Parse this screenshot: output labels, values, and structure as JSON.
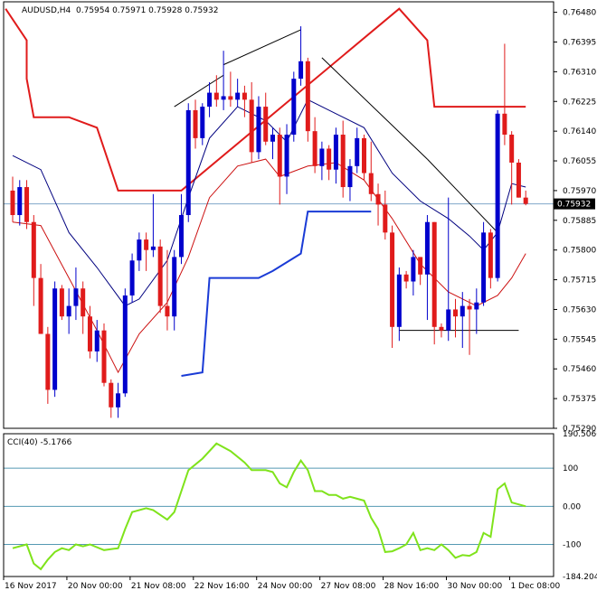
{
  "colors": {
    "background": "#ffffff",
    "axis": "#000000",
    "bull_body": "#0000cc",
    "bear_body": "#e01b1b",
    "ma_fast": "#00007f",
    "ma_slow": "#cc1111",
    "upper_band": "#e01b1b",
    "lower_band": "#1a3bd6",
    "cci_line": "#7fe31b",
    "cci_level": "#2a7fa0",
    "price_line": "#7fa7c9",
    "trendline": "#000000"
  },
  "chart_data": {
    "type": "candlestick",
    "header": {
      "symbol": "AUDUSD,H4",
      "ohlc": "0.75954 0.75971 0.75928 0.75932"
    },
    "current_price_label": "0.75932",
    "current_price": 0.75932,
    "ylim": [
      0.7529,
      0.7651
    ],
    "y_ticks": [
      "0.76480",
      "0.76395",
      "0.76310",
      "0.76225",
      "0.76140",
      "0.76055",
      "0.75970",
      "0.75885",
      "0.75800",
      "0.75715",
      "0.75630",
      "0.75545",
      "0.75460",
      "0.75375",
      "0.75290"
    ],
    "x_labels": [
      "16 Nov 2017",
      "20 Nov 00:00",
      "21 Nov 08:00",
      "22 Nov 16:00",
      "24 Nov 00:00",
      "27 Nov 08:00",
      "28 Nov 16:00",
      "30 Nov 00:00",
      "1 Dec 08:00"
    ],
    "candles": [
      {
        "o": 0.7597,
        "h": 0.7601,
        "l": 0.7588,
        "c": 0.759
      },
      {
        "o": 0.759,
        "h": 0.76,
        "l": 0.7587,
        "c": 0.7598
      },
      {
        "o": 0.7598,
        "h": 0.76,
        "l": 0.7586,
        "c": 0.7588
      },
      {
        "o": 0.7588,
        "h": 0.759,
        "l": 0.7564,
        "c": 0.7572
      },
      {
        "o": 0.7572,
        "h": 0.7576,
        "l": 0.7556,
        "c": 0.7556
      },
      {
        "o": 0.7556,
        "h": 0.7558,
        "l": 0.7536,
        "c": 0.754
      },
      {
        "o": 0.754,
        "h": 0.7571,
        "l": 0.7538,
        "c": 0.7569
      },
      {
        "o": 0.7569,
        "h": 0.757,
        "l": 0.756,
        "c": 0.7561
      },
      {
        "o": 0.7561,
        "h": 0.7569,
        "l": 0.7556,
        "c": 0.7564
      },
      {
        "o": 0.7564,
        "h": 0.7575,
        "l": 0.756,
        "c": 0.7569
      },
      {
        "o": 0.7569,
        "h": 0.7571,
        "l": 0.7556,
        "c": 0.7561
      },
      {
        "o": 0.7561,
        "h": 0.7564,
        "l": 0.7549,
        "c": 0.7551
      },
      {
        "o": 0.7551,
        "h": 0.756,
        "l": 0.7548,
        "c": 0.7557
      },
      {
        "o": 0.7557,
        "h": 0.7559,
        "l": 0.7541,
        "c": 0.7542
      },
      {
        "o": 0.7542,
        "h": 0.7543,
        "l": 0.7532,
        "c": 0.7535
      },
      {
        "o": 0.7535,
        "h": 0.7542,
        "l": 0.7532,
        "c": 0.7539
      },
      {
        "o": 0.7539,
        "h": 0.7569,
        "l": 0.7538,
        "c": 0.7567
      },
      {
        "o": 0.7567,
        "h": 0.7579,
        "l": 0.7565,
        "c": 0.7577
      },
      {
        "o": 0.7577,
        "h": 0.7585,
        "l": 0.7574,
        "c": 0.7583
      },
      {
        "o": 0.7583,
        "h": 0.7585,
        "l": 0.7574,
        "c": 0.758
      },
      {
        "o": 0.758,
        "h": 0.7596,
        "l": 0.7578,
        "c": 0.7581
      },
      {
        "o": 0.7581,
        "h": 0.7583,
        "l": 0.7562,
        "c": 0.7564
      },
      {
        "o": 0.7564,
        "h": 0.758,
        "l": 0.7557,
        "c": 0.7561
      },
      {
        "o": 0.7561,
        "h": 0.758,
        "l": 0.7557,
        "c": 0.7578
      },
      {
        "o": 0.7578,
        "h": 0.7596,
        "l": 0.7576,
        "c": 0.759
      },
      {
        "o": 0.759,
        "h": 0.7622,
        "l": 0.7588,
        "c": 0.762
      },
      {
        "o": 0.762,
        "h": 0.7623,
        "l": 0.7609,
        "c": 0.7612
      },
      {
        "o": 0.7612,
        "h": 0.7622,
        "l": 0.761,
        "c": 0.7621
      },
      {
        "o": 0.7621,
        "h": 0.7628,
        "l": 0.7618,
        "c": 0.7625
      },
      {
        "o": 0.7625,
        "h": 0.763,
        "l": 0.7621,
        "c": 0.7623
      },
      {
        "o": 0.7623,
        "h": 0.7637,
        "l": 0.762,
        "c": 0.7624
      },
      {
        "o": 0.7624,
        "h": 0.7631,
        "l": 0.7621,
        "c": 0.7623
      },
      {
        "o": 0.7623,
        "h": 0.7629,
        "l": 0.7621,
        "c": 0.7625
      },
      {
        "o": 0.7625,
        "h": 0.7627,
        "l": 0.7618,
        "c": 0.7623
      },
      {
        "o": 0.7623,
        "h": 0.7628,
        "l": 0.7605,
        "c": 0.7608
      },
      {
        "o": 0.7608,
        "h": 0.7624,
        "l": 0.7606,
        "c": 0.7621
      },
      {
        "o": 0.7621,
        "h": 0.7625,
        "l": 0.761,
        "c": 0.7611
      },
      {
        "o": 0.7611,
        "h": 0.7615,
        "l": 0.7606,
        "c": 0.7613
      },
      {
        "o": 0.7613,
        "h": 0.7615,
        "l": 0.7593,
        "c": 0.7601
      },
      {
        "o": 0.7601,
        "h": 0.7616,
        "l": 0.7596,
        "c": 0.7613
      },
      {
        "o": 0.7613,
        "h": 0.7631,
        "l": 0.7611,
        "c": 0.7629
      },
      {
        "o": 0.7629,
        "h": 0.7644,
        "l": 0.7627,
        "c": 0.7634
      },
      {
        "o": 0.7634,
        "h": 0.7635,
        "l": 0.7611,
        "c": 0.7614
      },
      {
        "o": 0.7614,
        "h": 0.7618,
        "l": 0.7602,
        "c": 0.7604
      },
      {
        "o": 0.7604,
        "h": 0.7611,
        "l": 0.76,
        "c": 0.7609
      },
      {
        "o": 0.7609,
        "h": 0.761,
        "l": 0.76,
        "c": 0.7603
      },
      {
        "o": 0.7603,
        "h": 0.7615,
        "l": 0.7599,
        "c": 0.7613
      },
      {
        "o": 0.7613,
        "h": 0.7617,
        "l": 0.7595,
        "c": 0.7598
      },
      {
        "o": 0.7598,
        "h": 0.7606,
        "l": 0.7594,
        "c": 0.7604
      },
      {
        "o": 0.7604,
        "h": 0.7615,
        "l": 0.7602,
        "c": 0.7612
      },
      {
        "o": 0.7612,
        "h": 0.7613,
        "l": 0.76,
        "c": 0.7602
      },
      {
        "o": 0.7602,
        "h": 0.7611,
        "l": 0.7594,
        "c": 0.7596
      },
      {
        "o": 0.7596,
        "h": 0.7599,
        "l": 0.7587,
        "c": 0.7593
      },
      {
        "o": 0.7593,
        "h": 0.7597,
        "l": 0.7583,
        "c": 0.7585
      },
      {
        "o": 0.7585,
        "h": 0.7587,
        "l": 0.7552,
        "c": 0.7558
      },
      {
        "o": 0.7558,
        "h": 0.7575,
        "l": 0.7554,
        "c": 0.7573
      },
      {
        "o": 0.7573,
        "h": 0.7574,
        "l": 0.7569,
        "c": 0.7571
      },
      {
        "o": 0.7571,
        "h": 0.758,
        "l": 0.7567,
        "c": 0.7578
      },
      {
        "o": 0.7578,
        "h": 0.7578,
        "l": 0.757,
        "c": 0.7573
      },
      {
        "o": 0.7573,
        "h": 0.759,
        "l": 0.756,
        "c": 0.7588
      },
      {
        "o": 0.7588,
        "h": 0.7588,
        "l": 0.7553,
        "c": 0.7558
      },
      {
        "o": 0.7558,
        "h": 0.7559,
        "l": 0.7555,
        "c": 0.7557
      },
      {
        "o": 0.7557,
        "h": 0.7595,
        "l": 0.7554,
        "c": 0.7563
      },
      {
        "o": 0.7563,
        "h": 0.7566,
        "l": 0.7555,
        "c": 0.7561
      },
      {
        "o": 0.7561,
        "h": 0.7568,
        "l": 0.7552,
        "c": 0.7564
      },
      {
        "o": 0.7564,
        "h": 0.7566,
        "l": 0.755,
        "c": 0.7563
      },
      {
        "o": 0.7563,
        "h": 0.7569,
        "l": 0.7556,
        "c": 0.7565
      },
      {
        "o": 0.7565,
        "h": 0.7588,
        "l": 0.7564,
        "c": 0.7585
      },
      {
        "o": 0.7585,
        "h": 0.7586,
        "l": 0.7569,
        "c": 0.7572
      },
      {
        "o": 0.7572,
        "h": 0.762,
        "l": 0.7571,
        "c": 0.7619
      },
      {
        "o": 0.7619,
        "h": 0.7639,
        "l": 0.761,
        "c": 0.7613
      },
      {
        "o": 0.7613,
        "h": 0.7614,
        "l": 0.7593,
        "c": 0.7605
      },
      {
        "o": 0.7605,
        "h": 0.7606,
        "l": 0.7595,
        "c": 0.7595
      },
      {
        "o": 0.7595,
        "h": 0.7597,
        "l": 0.75928,
        "c": 0.75932
      }
    ],
    "ma_fast": [
      {
        "i": 0,
        "v": 0.7607
      },
      {
        "i": 4,
        "v": 0.7603
      },
      {
        "i": 8,
        "v": 0.7585
      },
      {
        "i": 12,
        "v": 0.7575
      },
      {
        "i": 16,
        "v": 0.7564
      },
      {
        "i": 18,
        "v": 0.7566
      },
      {
        "i": 22,
        "v": 0.7577
      },
      {
        "i": 25,
        "v": 0.7595
      },
      {
        "i": 28,
        "v": 0.7612
      },
      {
        "i": 32,
        "v": 0.7621
      },
      {
        "i": 36,
        "v": 0.7617
      },
      {
        "i": 39,
        "v": 0.7611
      },
      {
        "i": 42,
        "v": 0.7623
      },
      {
        "i": 46,
        "v": 0.7619
      },
      {
        "i": 50,
        "v": 0.7615
      },
      {
        "i": 54,
        "v": 0.7602
      },
      {
        "i": 58,
        "v": 0.7594
      },
      {
        "i": 62,
        "v": 0.7589
      },
      {
        "i": 65,
        "v": 0.7584
      },
      {
        "i": 67,
        "v": 0.758
      },
      {
        "i": 69,
        "v": 0.7585
      },
      {
        "i": 71,
        "v": 0.7599
      },
      {
        "i": 73,
        "v": 0.7598
      }
    ],
    "ma_slow": [
      {
        "i": 0,
        "v": 0.7588
      },
      {
        "i": 4,
        "v": 0.7587
      },
      {
        "i": 8,
        "v": 0.7572
      },
      {
        "i": 12,
        "v": 0.7557
      },
      {
        "i": 15,
        "v": 0.7545
      },
      {
        "i": 18,
        "v": 0.7556
      },
      {
        "i": 22,
        "v": 0.7565
      },
      {
        "i": 25,
        "v": 0.7578
      },
      {
        "i": 28,
        "v": 0.7595
      },
      {
        "i": 32,
        "v": 0.7604
      },
      {
        "i": 36,
        "v": 0.7606
      },
      {
        "i": 38,
        "v": 0.7601
      },
      {
        "i": 42,
        "v": 0.7604
      },
      {
        "i": 46,
        "v": 0.7605
      },
      {
        "i": 50,
        "v": 0.76
      },
      {
        "i": 54,
        "v": 0.7589
      },
      {
        "i": 58,
        "v": 0.7576
      },
      {
        "i": 62,
        "v": 0.7568
      },
      {
        "i": 66,
        "v": 0.7564
      },
      {
        "i": 69,
        "v": 0.7567
      },
      {
        "i": 71,
        "v": 0.7572
      },
      {
        "i": 73,
        "v": 0.7579
      }
    ],
    "upper_band": [
      {
        "i": -1,
        "v": 0.7649
      },
      {
        "i": 2,
        "v": 0.764
      },
      {
        "i": 2,
        "v": 0.7629
      },
      {
        "i": 3,
        "v": 0.7618
      },
      {
        "i": 8,
        "v": 0.7618
      },
      {
        "i": 12,
        "v": 0.7615
      },
      {
        "i": 15,
        "v": 0.7597
      },
      {
        "i": 24,
        "v": 0.7597
      },
      {
        "i": 55,
        "v": 0.7649
      },
      {
        "i": 59,
        "v": 0.764
      },
      {
        "i": 60,
        "v": 0.7621
      },
      {
        "i": 73,
        "v": 0.7621
      }
    ],
    "lower_band": [
      {
        "i": 24,
        "v": 0.7544
      },
      {
        "i": 27,
        "v": 0.7545
      },
      {
        "i": 28,
        "v": 0.7572
      },
      {
        "i": 35,
        "v": 0.7572
      },
      {
        "i": 37,
        "v": 0.7574
      },
      {
        "i": 41,
        "v": 0.7579
      },
      {
        "i": 42,
        "v": 0.7591
      },
      {
        "i": 45,
        "v": 0.7591
      },
      {
        "i": 51,
        "v": 0.7591
      }
    ],
    "trendlines": [
      {
        "x1": 23,
        "y1": 0.7621,
        "x2": 30,
        "y2": 0.763
      },
      {
        "x1": 30,
        "y1": 0.7633,
        "x2": 41,
        "y2": 0.7643
      },
      {
        "x1": 44,
        "y1": 0.7635,
        "x2": 59,
        "y2": 0.7606
      },
      {
        "x1": 59,
        "y1": 0.7606,
        "x2": 69,
        "y2": 0.7585
      },
      {
        "x1": 55,
        "y1": 0.7557,
        "x2": 72,
        "y2": 0.7557
      }
    ],
    "cci": {
      "label": "CCI(40) -5.1766",
      "ylim": [
        -184.2043,
        190.5066
      ],
      "y_ticks": [
        "190.5066",
        "100",
        "0.00",
        "-100",
        "-184.2043"
      ],
      "levels": [
        100,
        0,
        -100
      ],
      "values": [
        {
          "i": 0,
          "v": -110
        },
        {
          "i": 2,
          "v": -100
        },
        {
          "i": 3,
          "v": -150
        },
        {
          "i": 4,
          "v": -165
        },
        {
          "i": 5,
          "v": -140
        },
        {
          "i": 6,
          "v": -120
        },
        {
          "i": 7,
          "v": -110
        },
        {
          "i": 8,
          "v": -115
        },
        {
          "i": 9,
          "v": -100
        },
        {
          "i": 10,
          "v": -105
        },
        {
          "i": 11,
          "v": -100
        },
        {
          "i": 13,
          "v": -115
        },
        {
          "i": 15,
          "v": -110
        },
        {
          "i": 16,
          "v": -60
        },
        {
          "i": 17,
          "v": -15
        },
        {
          "i": 19,
          "v": -5
        },
        {
          "i": 20,
          "v": -10
        },
        {
          "i": 22,
          "v": -35
        },
        {
          "i": 23,
          "v": -15
        },
        {
          "i": 25,
          "v": 95
        },
        {
          "i": 27,
          "v": 125
        },
        {
          "i": 29,
          "v": 165
        },
        {
          "i": 31,
          "v": 145
        },
        {
          "i": 33,
          "v": 115
        },
        {
          "i": 34,
          "v": 95
        },
        {
          "i": 36,
          "v": 95
        },
        {
          "i": 37,
          "v": 90
        },
        {
          "i": 38,
          "v": 60
        },
        {
          "i": 39,
          "v": 50
        },
        {
          "i": 40,
          "v": 90
        },
        {
          "i": 41,
          "v": 120
        },
        {
          "i": 42,
          "v": 95
        },
        {
          "i": 43,
          "v": 40
        },
        {
          "i": 44,
          "v": 40
        },
        {
          "i": 45,
          "v": 30
        },
        {
          "i": 46,
          "v": 30
        },
        {
          "i": 47,
          "v": 20
        },
        {
          "i": 48,
          "v": 25
        },
        {
          "i": 49,
          "v": 20
        },
        {
          "i": 50,
          "v": 15
        },
        {
          "i": 51,
          "v": -30
        },
        {
          "i": 52,
          "v": -60
        },
        {
          "i": 53,
          "v": -120
        },
        {
          "i": 54,
          "v": -118
        },
        {
          "i": 55,
          "v": -110
        },
        {
          "i": 56,
          "v": -100
        },
        {
          "i": 57,
          "v": -70
        },
        {
          "i": 58,
          "v": -115
        },
        {
          "i": 59,
          "v": -110
        },
        {
          "i": 60,
          "v": -115
        },
        {
          "i": 61,
          "v": -100
        },
        {
          "i": 62,
          "v": -115
        },
        {
          "i": 63,
          "v": -135
        },
        {
          "i": 64,
          "v": -128
        },
        {
          "i": 65,
          "v": -130
        },
        {
          "i": 66,
          "v": -120
        },
        {
          "i": 67,
          "v": -70
        },
        {
          "i": 68,
          "v": -80
        },
        {
          "i": 69,
          "v": 45
        },
        {
          "i": 70,
          "v": 60
        },
        {
          "i": 71,
          "v": 10
        },
        {
          "i": 72,
          "v": 5
        },
        {
          "i": 73,
          "v": 0
        }
      ]
    }
  }
}
